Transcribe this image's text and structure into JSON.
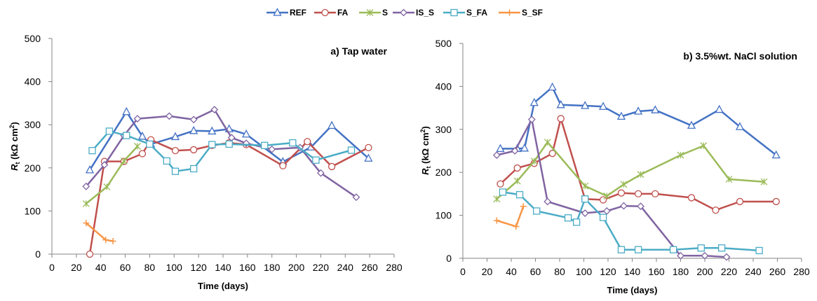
{
  "legend": [
    {
      "name": "REF",
      "color": "#4472C4",
      "marker": "triangle"
    },
    {
      "name": "FA",
      "color": "#C0504D",
      "marker": "circle"
    },
    {
      "name": "S",
      "color": "#9BBB59",
      "marker": "xstar"
    },
    {
      "name": "IS_S",
      "color": "#8064A2",
      "marker": "diamond"
    },
    {
      "name": "S_FA",
      "color": "#4BACC6",
      "marker": "square"
    },
    {
      "name": "S_SF",
      "color": "#F79646",
      "marker": "plus"
    }
  ],
  "chart_data": [
    {
      "type": "line",
      "title": "a) Tap water",
      "xlabel": "Time (days)",
      "ylabel_main": "R",
      "ylabel_sub": "t",
      "ylabel_rest": " (kΩ cm",
      "ylabel_sup": "2",
      "ylabel_end": ")",
      "xlim": [
        0,
        280
      ],
      "ylim": [
        0,
        500
      ],
      "xticks": [
        0,
        20,
        40,
        60,
        80,
        100,
        120,
        140,
        160,
        180,
        200,
        220,
        240,
        260,
        280
      ],
      "yticks": [
        0,
        100,
        200,
        300,
        400,
        500
      ],
      "series": [
        {
          "name": "REF",
          "x": [
            31,
            61,
            74,
            81,
            101,
            116,
            131,
            145,
            159,
            189,
            212,
            229,
            259
          ],
          "y": [
            195,
            330,
            273,
            255,
            272,
            286,
            285,
            290,
            278,
            214,
            248,
            298,
            222
          ]
        },
        {
          "name": "FA",
          "x": [
            31,
            43,
            59,
            74,
            81,
            101,
            116,
            131,
            145,
            159,
            189,
            209,
            229,
            259
          ],
          "y": [
            0,
            215,
            215,
            233,
            265,
            240,
            242,
            252,
            258,
            254,
            205,
            261,
            203,
            247
          ]
        },
        {
          "name": "S",
          "x": [
            28,
            45,
            59,
            70
          ],
          "y": [
            117,
            156,
            216,
            250
          ]
        },
        {
          "name": "IS_S",
          "x": [
            28,
            43,
            59,
            70,
            96,
            116,
            133,
            147,
            159,
            180,
            203,
            220,
            249
          ],
          "y": [
            157,
            207,
            275,
            314,
            320,
            312,
            335,
            270,
            257,
            243,
            247,
            188,
            132
          ]
        },
        {
          "name": "S_FA",
          "x": [
            33,
            47,
            61,
            80,
            94,
            101,
            116,
            131,
            145,
            174,
            197,
            216,
            245
          ],
          "y": [
            240,
            285,
            275,
            255,
            216,
            192,
            198,
            254,
            255,
            252,
            258,
            218,
            241
          ]
        },
        {
          "name": "S_SF",
          "x": [
            28,
            44,
            50
          ],
          "y": [
            72,
            33,
            30
          ]
        }
      ]
    },
    {
      "type": "line",
      "title": "b) 3.5%wt. NaCl solution",
      "xlabel": "Time (days)",
      "ylabel_main": "R",
      "ylabel_sub": "t",
      "ylabel_rest": " (kΩ cm",
      "ylabel_sup": "2",
      "ylabel_end": ")",
      "xlim": [
        0,
        280
      ],
      "ylim": [
        0,
        500
      ],
      "xticks": [
        0,
        20,
        40,
        60,
        80,
        100,
        120,
        140,
        160,
        180,
        200,
        220,
        240,
        260,
        280
      ],
      "yticks": [
        0,
        100,
        200,
        300,
        400,
        500
      ],
      "series": [
        {
          "name": "REF",
          "x": [
            31,
            45,
            51,
            59,
            74,
            81,
            101,
            116,
            131,
            145,
            159,
            189,
            212,
            229,
            259
          ],
          "y": [
            255,
            255,
            256,
            362,
            398,
            357,
            355,
            353,
            330,
            342,
            345,
            309,
            346,
            306,
            240
          ]
        },
        {
          "name": "FA",
          "x": [
            31,
            45,
            59,
            74,
            81,
            101,
            116,
            131,
            145,
            159,
            189,
            209,
            229,
            259
          ],
          "y": [
            173,
            210,
            221,
            244,
            325,
            138,
            136,
            152,
            150,
            150,
            141,
            112,
            132,
            132
          ]
        },
        {
          "name": "S",
          "x": [
            28,
            45,
            59,
            70,
            101,
            119,
            133,
            147,
            180,
            199,
            220,
            249
          ],
          "y": [
            138,
            180,
            226,
            270,
            168,
            145,
            172,
            195,
            240,
            262,
            184,
            178
          ]
        },
        {
          "name": "IS_S",
          "x": [
            28,
            43,
            57,
            70,
            101,
            119,
            133,
            147,
            180,
            200,
            218
          ],
          "y": [
            240,
            250,
            323,
            132,
            105,
            110,
            122,
            121,
            6,
            6,
            3
          ]
        },
        {
          "name": "S_FA",
          "x": [
            33,
            47,
            61,
            87,
            94,
            101,
            116,
            131,
            145,
            174,
            197,
            214,
            245
          ],
          "y": [
            154,
            148,
            110,
            94,
            84,
            138,
            95,
            20,
            20,
            20,
            24,
            24,
            18
          ]
        },
        {
          "name": "S_SF",
          "x": [
            28,
            44,
            50
          ],
          "y": [
            88,
            74,
            121
          ]
        }
      ]
    }
  ]
}
